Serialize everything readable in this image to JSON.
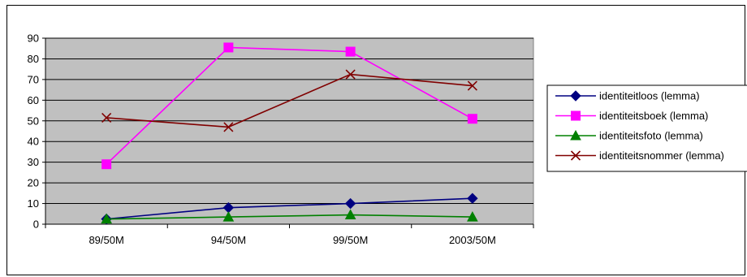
{
  "chart_data": {
    "type": "line",
    "categories": [
      "89/50M",
      "94/50M",
      "99/50M",
      "2003/50M"
    ],
    "ylim": [
      0,
      90
    ],
    "yticks": [
      0,
      10,
      20,
      30,
      40,
      50,
      60,
      70,
      80,
      90
    ],
    "grid": true,
    "legend_position": "right",
    "series": [
      {
        "name": "identiteitloos (lemma)",
        "values": [
          2.5,
          8,
          10,
          12.5
        ],
        "color": "#000080",
        "marker": "diamond"
      },
      {
        "name": "identiteitsboek (lemma)",
        "values": [
          29,
          85.5,
          83.5,
          51
        ],
        "color": "#ff00ff",
        "marker": "square"
      },
      {
        "name": "identiteitsfoto (lemma)",
        "values": [
          2.5,
          3.5,
          4.5,
          3.5
        ],
        "color": "#008000",
        "marker": "triangle"
      },
      {
        "name": "identiteitsnommer (lemma)",
        "values": [
          51.5,
          47,
          72.5,
          67
        ],
        "color": "#800000",
        "marker": "x"
      }
    ]
  }
}
